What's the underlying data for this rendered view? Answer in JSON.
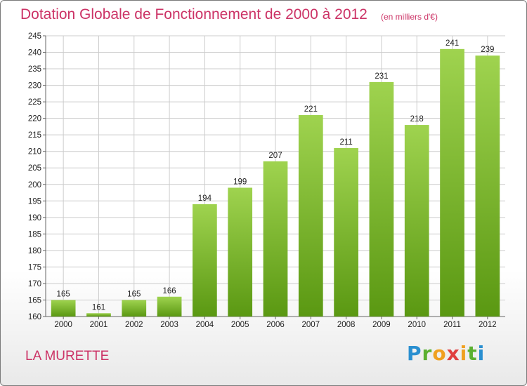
{
  "header": {
    "title": "Dotation Globale de Fonctionnement de 2000 à 2012",
    "subtitle": "(en milliers d'€)"
  },
  "footer": {
    "commune": "LA MURETTE",
    "logo_letters": [
      {
        "ch": "P",
        "color": "#2a8fd0"
      },
      {
        "ch": "r",
        "color": "#5bb030"
      },
      {
        "ch": "o",
        "color": "#f0a020"
      },
      {
        "ch": "x",
        "color": "#e04040"
      },
      {
        "ch": "i",
        "color": "#f0a020"
      },
      {
        "ch": "t",
        "color": "#5bb030"
      },
      {
        "ch": "i",
        "color": "#2a8fd0"
      }
    ]
  },
  "colors": {
    "bar_top": "#9fd34f",
    "bar_bottom": "#5a9812",
    "title": "#cc3366",
    "grid": "#cccccc"
  },
  "chart_data": {
    "type": "bar",
    "categories": [
      "2000",
      "2001",
      "2002",
      "2003",
      "2004",
      "2005",
      "2006",
      "2007",
      "2008",
      "2009",
      "2010",
      "2011",
      "2012"
    ],
    "values": [
      165,
      161,
      165,
      166,
      194,
      199,
      207,
      221,
      211,
      231,
      218,
      241,
      239
    ],
    "ylim": [
      160,
      245
    ],
    "yticks": [
      160,
      165,
      170,
      175,
      180,
      185,
      190,
      195,
      200,
      205,
      210,
      215,
      220,
      225,
      230,
      235,
      240,
      245
    ],
    "grid": true,
    "xlabel": "",
    "ylabel": ""
  }
}
